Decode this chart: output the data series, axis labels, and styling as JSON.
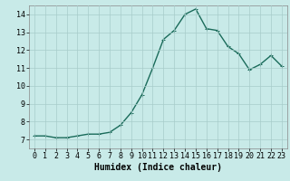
{
  "x": [
    0,
    1,
    2,
    3,
    4,
    5,
    6,
    7,
    8,
    9,
    10,
    11,
    12,
    13,
    14,
    15,
    16,
    17,
    18,
    19,
    20,
    21,
    22,
    23
  ],
  "y": [
    7.2,
    7.2,
    7.1,
    7.1,
    7.2,
    7.3,
    7.3,
    7.4,
    7.8,
    8.5,
    9.5,
    11.0,
    12.6,
    13.1,
    14.0,
    14.3,
    13.2,
    13.1,
    12.2,
    11.8,
    10.9,
    11.2,
    11.7,
    11.1
  ],
  "line_color": "#1a6b5a",
  "bg_color": "#c8eae8",
  "grid_color": "#a8ccca",
  "xlabel": "Humidex (Indice chaleur)",
  "ylim": [
    6.5,
    14.5
  ],
  "xlim": [
    -0.5,
    23.5
  ],
  "yticks": [
    7,
    8,
    9,
    10,
    11,
    12,
    13,
    14
  ],
  "xticks": [
    0,
    1,
    2,
    3,
    4,
    5,
    6,
    7,
    8,
    9,
    10,
    11,
    12,
    13,
    14,
    15,
    16,
    17,
    18,
    19,
    20,
    21,
    22,
    23
  ],
  "marker": "+",
  "marker_size": 3,
  "line_width": 1.0,
  "font_size": 6,
  "xlabel_fontsize": 7
}
